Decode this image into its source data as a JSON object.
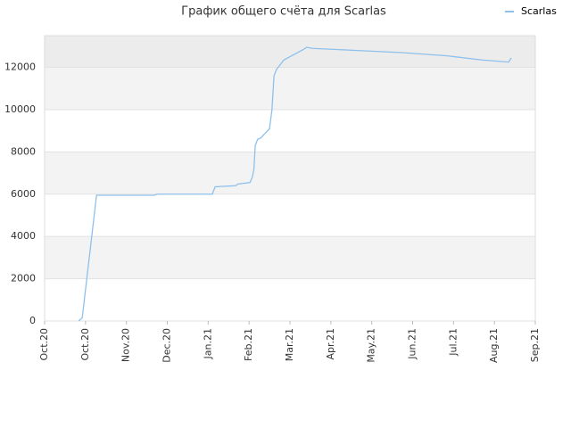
{
  "chart_data": {
    "type": "line",
    "title": "График общего счёта для Scarlas",
    "x": [
      0.83,
      0.92,
      1.27,
      2.68,
      2.75,
      4.1,
      4.17,
      4.67,
      4.73,
      5.02,
      5.08,
      5.12,
      5.15,
      5.21,
      5.28,
      5.5,
      5.56,
      5.61,
      5.67,
      5.85,
      6.33,
      6.41,
      6.55,
      7.64,
      8.73,
      9.82,
      10.69,
      11.35,
      11.41
    ],
    "series": [
      {
        "name": "Scarlas",
        "color": "#8ec0ec",
        "values": [
          0,
          150,
          5950,
          5950,
          6000,
          6000,
          6350,
          6400,
          6480,
          6550,
          6800,
          7200,
          8300,
          8600,
          8650,
          9100,
          10000,
          11600,
          11900,
          12350,
          12850,
          12950,
          12900,
          12800,
          12700,
          12550,
          12350,
          12250,
          12450
        ]
      }
    ],
    "xlim": [
      0,
      12
    ],
    "xticks": [
      {
        "value": 0,
        "label": "Oct.20"
      },
      {
        "value": 1,
        "label": "Oct.20"
      },
      {
        "value": 2,
        "label": "Nov.20"
      },
      {
        "value": 3,
        "label": "Dec.20"
      },
      {
        "value": 4,
        "label": "Jan.21"
      },
      {
        "value": 5,
        "label": "Feb.21"
      },
      {
        "value": 6,
        "label": "Mar.21"
      },
      {
        "value": 7,
        "label": "Apr.21"
      },
      {
        "value": 8,
        "label": "May.21"
      },
      {
        "value": 9,
        "label": "Jun.21"
      },
      {
        "value": 10,
        "label": "Jul.21"
      },
      {
        "value": 11,
        "label": "Aug.21"
      },
      {
        "value": 12,
        "label": "Sep.21"
      }
    ],
    "ylim": [
      0,
      13500
    ],
    "yticks": [
      0,
      2000,
      4000,
      6000,
      8000,
      10000,
      12000
    ],
    "grid": true,
    "legend": "top-right"
  }
}
